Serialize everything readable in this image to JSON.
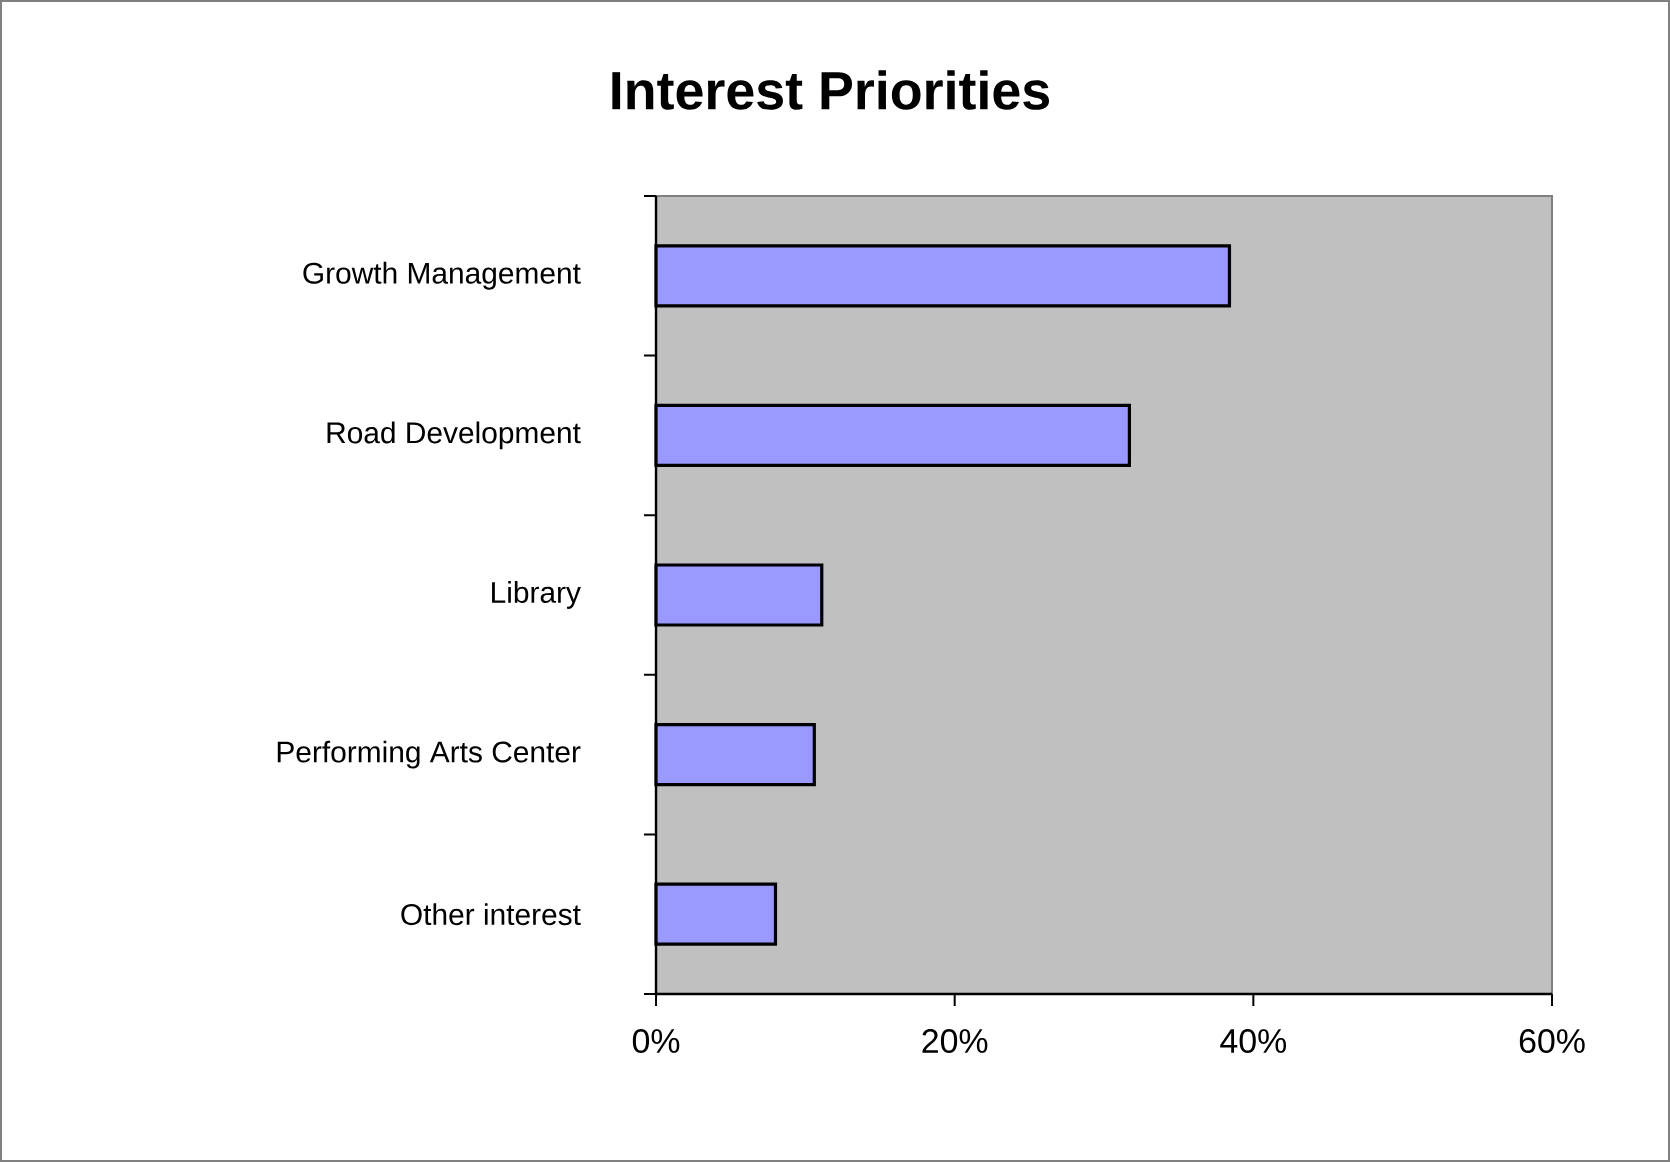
{
  "chart_data": {
    "type": "bar",
    "orientation": "horizontal",
    "title": "Interest Priorities",
    "categories": [
      "Growth Management",
      "Road Development",
      "Library",
      "Performing Arts Center",
      "Other interest"
    ],
    "values": [
      38.4,
      31.7,
      11.1,
      10.6,
      8.0
    ],
    "color": "#9999ff",
    "xlim": [
      0,
      60
    ],
    "xticks": [
      {
        "value": 0,
        "label": "0%"
      },
      {
        "value": 20,
        "label": "20%"
      },
      {
        "value": 40,
        "label": "40%"
      },
      {
        "value": 60,
        "label": "60%"
      }
    ],
    "grid": false
  }
}
